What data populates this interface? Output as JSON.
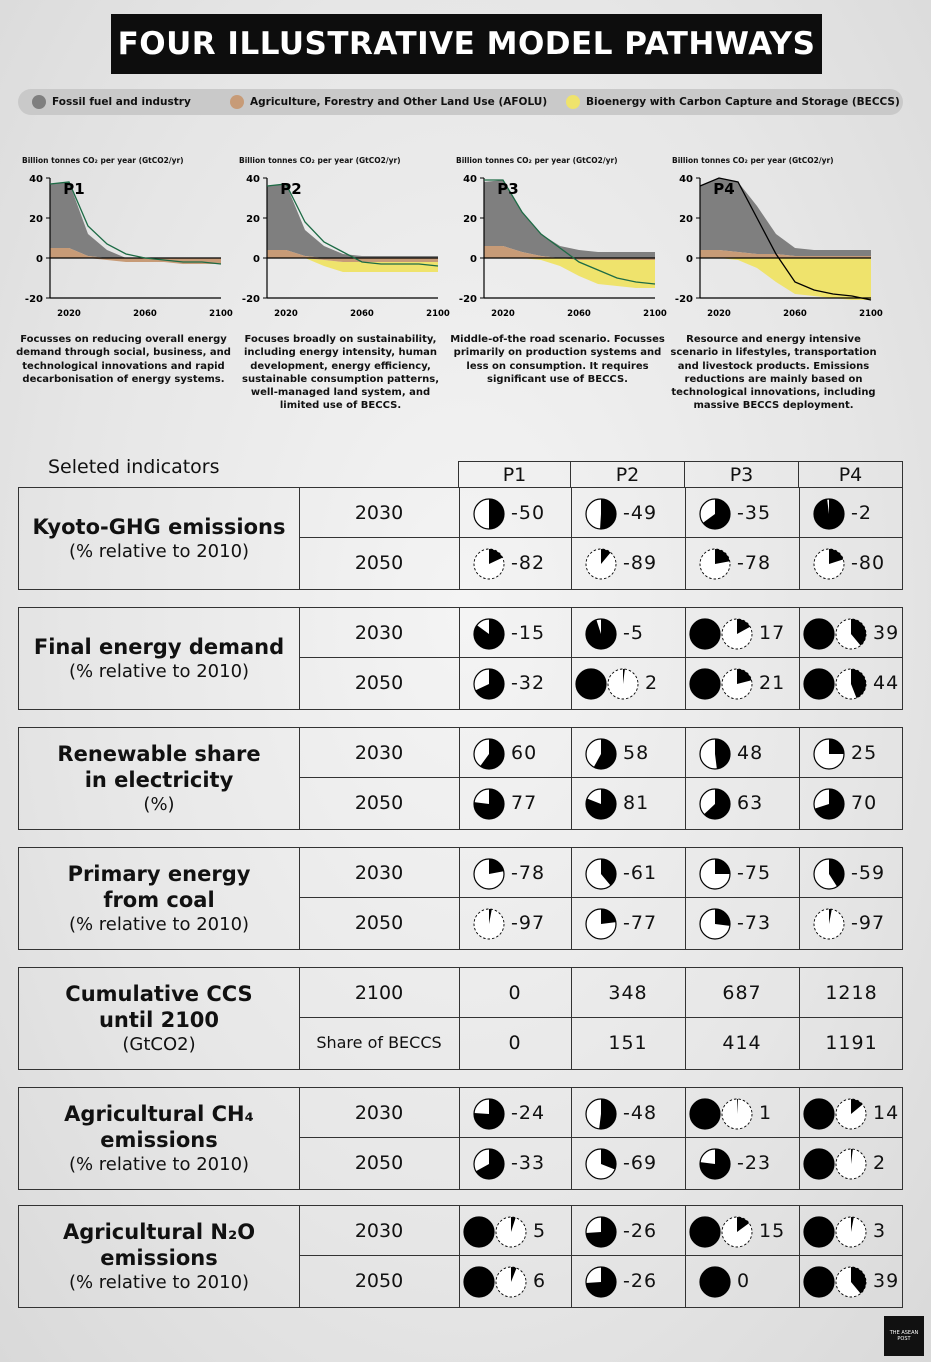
{
  "title": "FOUR ILLUSTRATIVE MODEL PATHWAYS",
  "legend": [
    {
      "label": "Fossil fuel and industry",
      "color": "#7f7f7f"
    },
    {
      "label": "Agriculture, Forestry and Other Land Use (AFOLU)",
      "color": "#c79b77"
    },
    {
      "label": "Bioenergy with Carbon Capture and Storage (BECCS)",
      "color": "#efe36c"
    }
  ],
  "chart_data": [
    {
      "type": "area",
      "name": "P1",
      "ylabel": "Billion tonnes CO₂ per year (GtCO2/yr)",
      "description": "Focusses on reducing overall energy demand through social, business, and technological innovations and rapid decarbonisation of energy systems.",
      "x": [
        2010,
        2020,
        2030,
        2040,
        2050,
        2060,
        2070,
        2080,
        2090,
        2100
      ],
      "fossil": [
        37,
        38,
        12,
        4,
        0,
        -2,
        -2,
        -2,
        -2,
        -2
      ],
      "afolu": [
        5,
        5,
        1,
        -1,
        -2,
        -2,
        -2,
        -3,
        -3,
        -3
      ],
      "beccs": [
        0,
        0,
        0,
        0,
        0,
        0,
        0,
        0,
        0,
        0
      ],
      "net": [
        37,
        38,
        16,
        7,
        2,
        0,
        -1,
        -2,
        -2,
        -3
      ],
      "xticks": [
        2020,
        2060,
        2100
      ],
      "yticks": [
        40,
        20,
        0,
        -20
      ],
      "ylim": [
        -20,
        40
      ],
      "xlim": [
        2010,
        2100
      ]
    },
    {
      "type": "area",
      "name": "P2",
      "ylabel": "Billion tonnes CO₂ per year (GtCO2/yr)",
      "description": "Focuses broadly on sustainability, including energy intensity, human development, energy efficiency, sustainable consumption patterns, well-managed land system, and limited use of BECCS.",
      "x": [
        2010,
        2020,
        2030,
        2040,
        2050,
        2060,
        2070,
        2080,
        2090,
        2100
      ],
      "fossil": [
        36,
        37,
        14,
        6,
        2,
        1,
        1,
        1,
        1,
        1
      ],
      "afolu": [
        4,
        4,
        1,
        -1,
        -2,
        -2,
        -2,
        -2,
        -2,
        -2
      ],
      "beccs": [
        0,
        0,
        0,
        -3,
        -5,
        -5,
        -5,
        -5,
        -5,
        -5
      ],
      "net": [
        36,
        37,
        18,
        8,
        3,
        -2,
        -3,
        -3,
        -3,
        -4
      ],
      "xticks": [
        2020,
        2060,
        2100
      ],
      "yticks": [
        40,
        20,
        0,
        -20
      ],
      "ylim": [
        -20,
        40
      ],
      "xlim": [
        2010,
        2100
      ]
    },
    {
      "type": "area",
      "name": "P3",
      "ylabel": "Billion tonnes CO₂ per year (GtCO2/yr)",
      "description": "Middle-of-the road scenario. Focusses primarily on production systems and less on consumption. It requires significant use of BECCS.",
      "x": [
        2010,
        2020,
        2030,
        2040,
        2050,
        2060,
        2070,
        2080,
        2090,
        2100
      ],
      "fossil": [
        38,
        39,
        23,
        12,
        6,
        4,
        3,
        3,
        3,
        3
      ],
      "afolu": [
        6,
        6,
        3,
        1,
        0,
        -1,
        -1,
        -1,
        -1,
        -1
      ],
      "beccs": [
        0,
        0,
        0,
        -1,
        -4,
        -8,
        -12,
        -13,
        -14,
        -14
      ],
      "net": [
        39,
        39,
        23,
        12,
        5,
        -2,
        -6,
        -10,
        -12,
        -13
      ],
      "xticks": [
        2020,
        2060,
        2100
      ],
      "yticks": [
        40,
        20,
        0,
        -20
      ],
      "ylim": [
        -20,
        40
      ],
      "xlim": [
        2010,
        2100
      ]
    },
    {
      "type": "area",
      "name": "P4",
      "ylabel": "Billion tonnes CO₂ per year (GtCO2/yr)",
      "description": "Resource and energy intensive scenario in lifestyles, transportation and livestock products. Emissions reductions are mainly based on technological innovations, including massive BECCS deployment.",
      "x": [
        2010,
        2020,
        2030,
        2040,
        2050,
        2060,
        2070,
        2080,
        2090,
        2100
      ],
      "fossil": [
        36,
        40,
        38,
        26,
        12,
        5,
        4,
        4,
        4,
        4
      ],
      "afolu": [
        4,
        4,
        3,
        2,
        2,
        1,
        1,
        1,
        1,
        1
      ],
      "beccs": [
        0,
        0,
        -1,
        -5,
        -12,
        -18,
        -19,
        -20,
        -21,
        -21
      ],
      "net": [
        36,
        40,
        38,
        20,
        2,
        -12,
        -16,
        -18,
        -19,
        -21
      ],
      "xticks": [
        2020,
        2060,
        2100
      ],
      "yticks": [
        40,
        20,
        0,
        -20
      ],
      "ylim": [
        -20,
        40
      ],
      "xlim": [
        2010,
        2100
      ]
    }
  ],
  "selected_label": "Seleted indicators",
  "pathways": [
    "P1",
    "P2",
    "P3",
    "P4"
  ],
  "blocks": [
    {
      "name": "Kyoto-GHG emissions",
      "unit": "(% relative to 2010)",
      "rows": [
        {
          "year": "2030",
          "values": [
            -50,
            -49,
            -35,
            -2
          ]
        },
        {
          "year": "2050",
          "values": [
            -82,
            -89,
            -78,
            -80
          ]
        }
      ]
    },
    {
      "name": "Final energy demand",
      "unit": "(% relative to 2010)",
      "rows": [
        {
          "year": "2030",
          "values": [
            -15,
            -5,
            17,
            39
          ]
        },
        {
          "year": "2050",
          "values": [
            -32,
            2,
            21,
            44
          ]
        }
      ]
    },
    {
      "name": "Renewable share\nin electricity",
      "unit": "(%)",
      "rows": [
        {
          "year": "2030",
          "values": [
            60,
            58,
            48,
            25
          ]
        },
        {
          "year": "2050",
          "values": [
            77,
            81,
            63,
            70
          ]
        }
      ]
    },
    {
      "name": "Primary energy\nfrom coal",
      "unit": "(% relative to 2010)",
      "rows": [
        {
          "year": "2030",
          "values": [
            -78,
            -61,
            -75,
            -59
          ]
        },
        {
          "year": "2050",
          "values": [
            -97,
            -77,
            -73,
            -97
          ]
        }
      ]
    },
    {
      "name": "Cumulative CCS\nuntil 2100",
      "unit": "(GtCO2)",
      "nopie": true,
      "rows": [
        {
          "year": "2100",
          "values": [
            "0",
            "348",
            "687",
            "1218"
          ]
        },
        {
          "year": "Share of BECCS",
          "values": [
            "0",
            "151",
            "414",
            "1191"
          ]
        }
      ]
    },
    {
      "name": "Agricultural CH₄\nemissions",
      "unit": "(% relative to 2010)",
      "rows": [
        {
          "year": "2030",
          "values": [
            -24,
            -48,
            1,
            14
          ]
        },
        {
          "year": "2050",
          "values": [
            -33,
            -69,
            -23,
            2
          ]
        }
      ]
    },
    {
      "name": "Agricultural N₂O\nemissions",
      "unit": "(% relative to 2010)",
      "rows": [
        {
          "year": "2030",
          "values": [
            5,
            -26,
            15,
            3
          ]
        },
        {
          "year": "2050",
          "values": [
            6,
            -26,
            0,
            39
          ]
        }
      ]
    }
  ],
  "logo_text": "THE ASEAN POST"
}
